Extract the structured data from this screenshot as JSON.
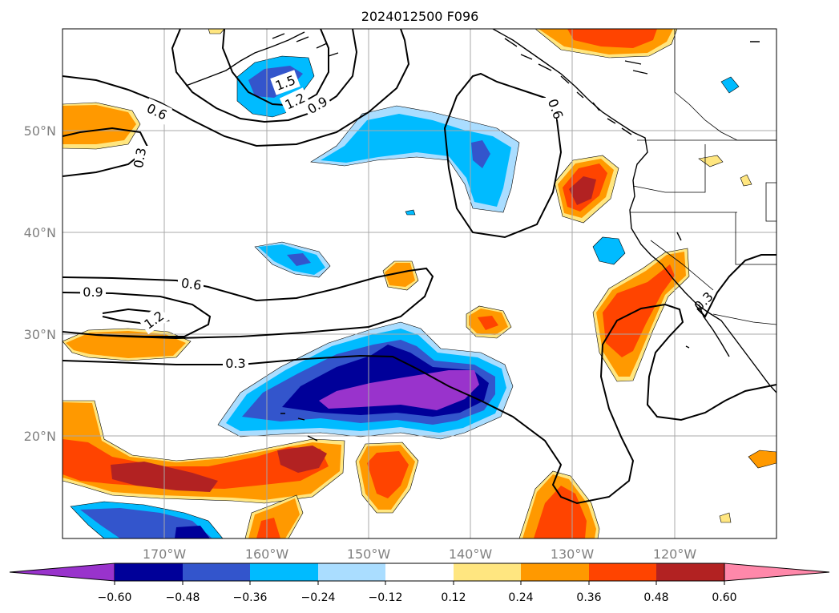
{
  "title": "2024012500 F096",
  "map": {
    "lat_labels": [
      "50°N",
      "40°N",
      "30°N",
      "20°N"
    ],
    "lon_labels": [
      "170°W",
      "160°W",
      "150°W",
      "140°W",
      "130°W",
      "120°W"
    ],
    "extent": {
      "lon": [
        -180,
        -110
      ],
      "lat": [
        10,
        60
      ]
    }
  },
  "colorbar": {
    "ticks": [
      "−0.60",
      "−0.48",
      "−0.36",
      "−0.24",
      "−0.12",
      "0.12",
      "0.24",
      "0.36",
      "0.48",
      "0.60"
    ],
    "colors": [
      "#9933cc",
      "#000099",
      "#3355cc",
      "#00bbff",
      "#aaddff",
      "#ffffff",
      "#ffe680",
      "#ff9900",
      "#ff4400",
      "#b22222",
      "#ff88aa"
    ],
    "extend": "both"
  },
  "contour_labels": [
    "0.6",
    "0.3",
    "1.5",
    "1.2",
    "0.9",
    "0.6",
    "0.6",
    "0.9",
    "1.2",
    "0.3",
    "0.3"
  ],
  "colors": {
    "positive_high": "#b22222",
    "positive_mid": "#ff4400",
    "positive_low": "#ff9900",
    "negative_high": "#000099"
  }
}
